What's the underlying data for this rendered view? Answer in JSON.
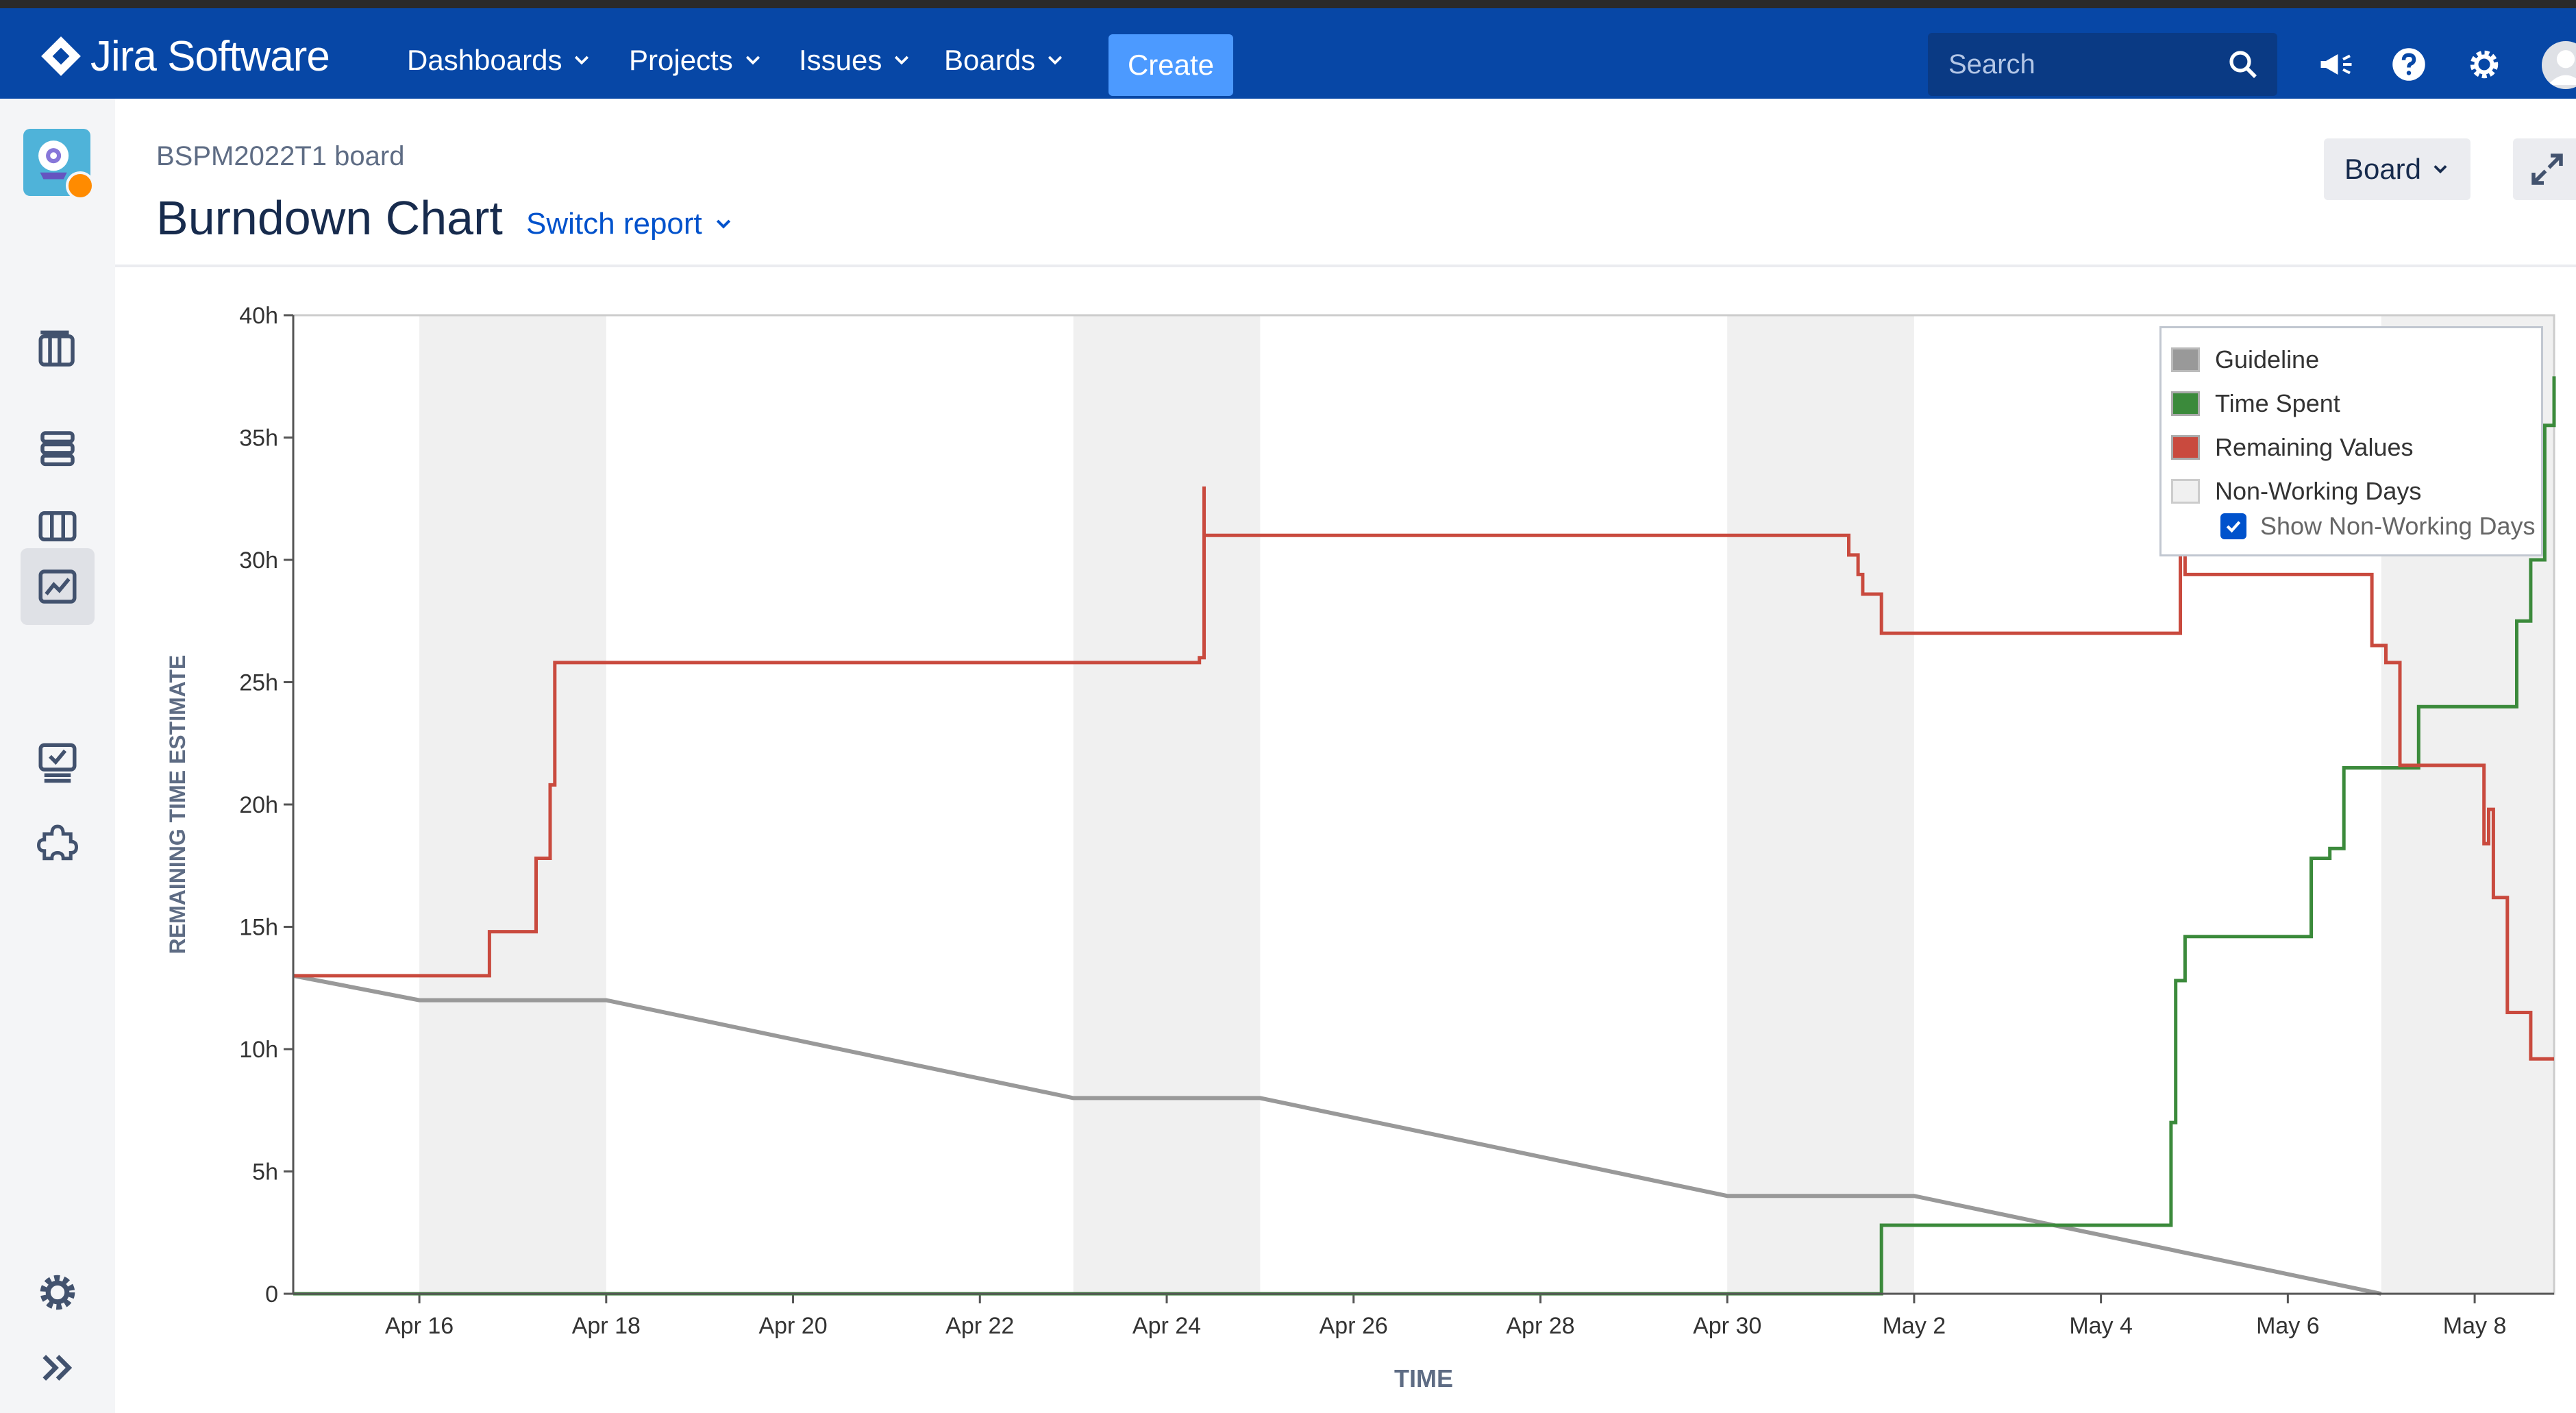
{
  "app": {
    "product_name": "Jira Software",
    "nav": [
      {
        "label": "Dashboards"
      },
      {
        "label": "Projects"
      },
      {
        "label": "Issues"
      },
      {
        "label": "Boards"
      }
    ],
    "create_label": "Create",
    "search_placeholder": "Search"
  },
  "page": {
    "breadcrumb": "BSPM2022T1 board",
    "title": "Burndown Chart",
    "switch_report_label": "Switch report",
    "board_button_label": "Board"
  },
  "legend": {
    "items": [
      "Guideline",
      "Time Spent",
      "Remaining Values",
      "Non-Working Days"
    ],
    "show_non_working_label": "Show Non-Working Days",
    "show_non_working_checked": true
  },
  "colors": {
    "nav_bg": "#0747a6",
    "guideline": "#999999",
    "time_spent": "#3b8a3b",
    "remaining": "#c94a3e",
    "non_working": "#f0f0f0"
  },
  "chart_data": {
    "type": "line",
    "xlabel": "TIME",
    "ylabel": "REMAINING TIME ESTIMATE",
    "ylim": [
      0,
      40
    ],
    "yticks": [
      "0",
      "5h",
      "10h",
      "15h",
      "20h",
      "25h",
      "30h",
      "35h",
      "40h"
    ],
    "xlim": [
      14.65,
      38.85
    ],
    "xtick_values": [
      16,
      18,
      20,
      22,
      24,
      26,
      28,
      30,
      32,
      34,
      36,
      38
    ],
    "xticks": [
      "Apr 16",
      "Apr 18",
      "Apr 20",
      "Apr 22",
      "Apr 24",
      "Apr 26",
      "Apr 28",
      "Apr 30",
      "May 2",
      "May 4",
      "May 6",
      "May 8"
    ],
    "x_units": "days of April (May 2 = 32)",
    "non_working_days": [
      [
        16,
        18
      ],
      [
        23,
        25
      ],
      [
        30,
        32
      ],
      [
        37,
        38.85
      ]
    ],
    "grid": false,
    "legend_placement": "top-right",
    "series": [
      {
        "name": "Guideline",
        "x": [
          14.65,
          16,
          18,
          23,
          25,
          30,
          32,
          37
        ],
        "y": [
          13,
          12,
          12,
          8,
          8,
          4,
          4,
          0
        ]
      },
      {
        "name": "Time Spent",
        "x": [
          14.65,
          31.65,
          31.65,
          34.75,
          34.75,
          34.8,
          34.8,
          34.9,
          34.9,
          36.25,
          36.25,
          36.45,
          36.45,
          36.6,
          36.6,
          37.4,
          37.4,
          37.55,
          37.55,
          37.7,
          37.7,
          38.45,
          38.45,
          38.6,
          38.6,
          38.75,
          38.75,
          38.85,
          38.85
        ],
        "y": [
          0,
          0,
          2.8,
          2.8,
          7,
          7,
          12.8,
          12.8,
          14.6,
          14.6,
          17.8,
          17.8,
          18.2,
          18.2,
          21.5,
          21.5,
          24,
          24,
          24,
          24,
          24,
          24,
          27.5,
          27.5,
          30,
          30,
          35.5,
          35.5,
          37.5
        ]
      },
      {
        "name": "Remaining Values",
        "x": [
          14.65,
          16.75,
          16.75,
          17.25,
          17.25,
          17.4,
          17.4,
          17.45,
          17.45,
          17.55,
          17.55,
          24.35,
          24.35,
          24.4,
          24.4,
          24.4,
          24.4,
          31.3,
          31.3,
          31.4,
          31.4,
          31.45,
          31.45,
          31.65,
          31.65,
          34.85,
          34.85,
          34.9,
          34.9,
          36.9,
          36.9,
          37.05,
          37.05,
          37.2,
          37.2,
          37.35,
          37.35,
          38.1,
          38.1,
          38.15,
          38.15,
          38.2,
          38.2,
          38.35,
          38.35,
          38.6,
          38.6,
          38.85,
          38.85
        ],
        "y": [
          13,
          13,
          14.8,
          14.8,
          17.8,
          17.8,
          20.8,
          20.8,
          25.8,
          25.8,
          25.8,
          25.8,
          26,
          26,
          33,
          31,
          31,
          31,
          30.2,
          30.2,
          29.4,
          29.4,
          28.6,
          28.6,
          27,
          27,
          31,
          31,
          29.4,
          29.4,
          26.5,
          26.5,
          25.8,
          25.8,
          21.6,
          21.6,
          21.6,
          21.6,
          18.4,
          18.4,
          19.8,
          19.8,
          16.2,
          16.2,
          11.5,
          11.5,
          9.6,
          9.6,
          9.6
        ]
      }
    ]
  }
}
